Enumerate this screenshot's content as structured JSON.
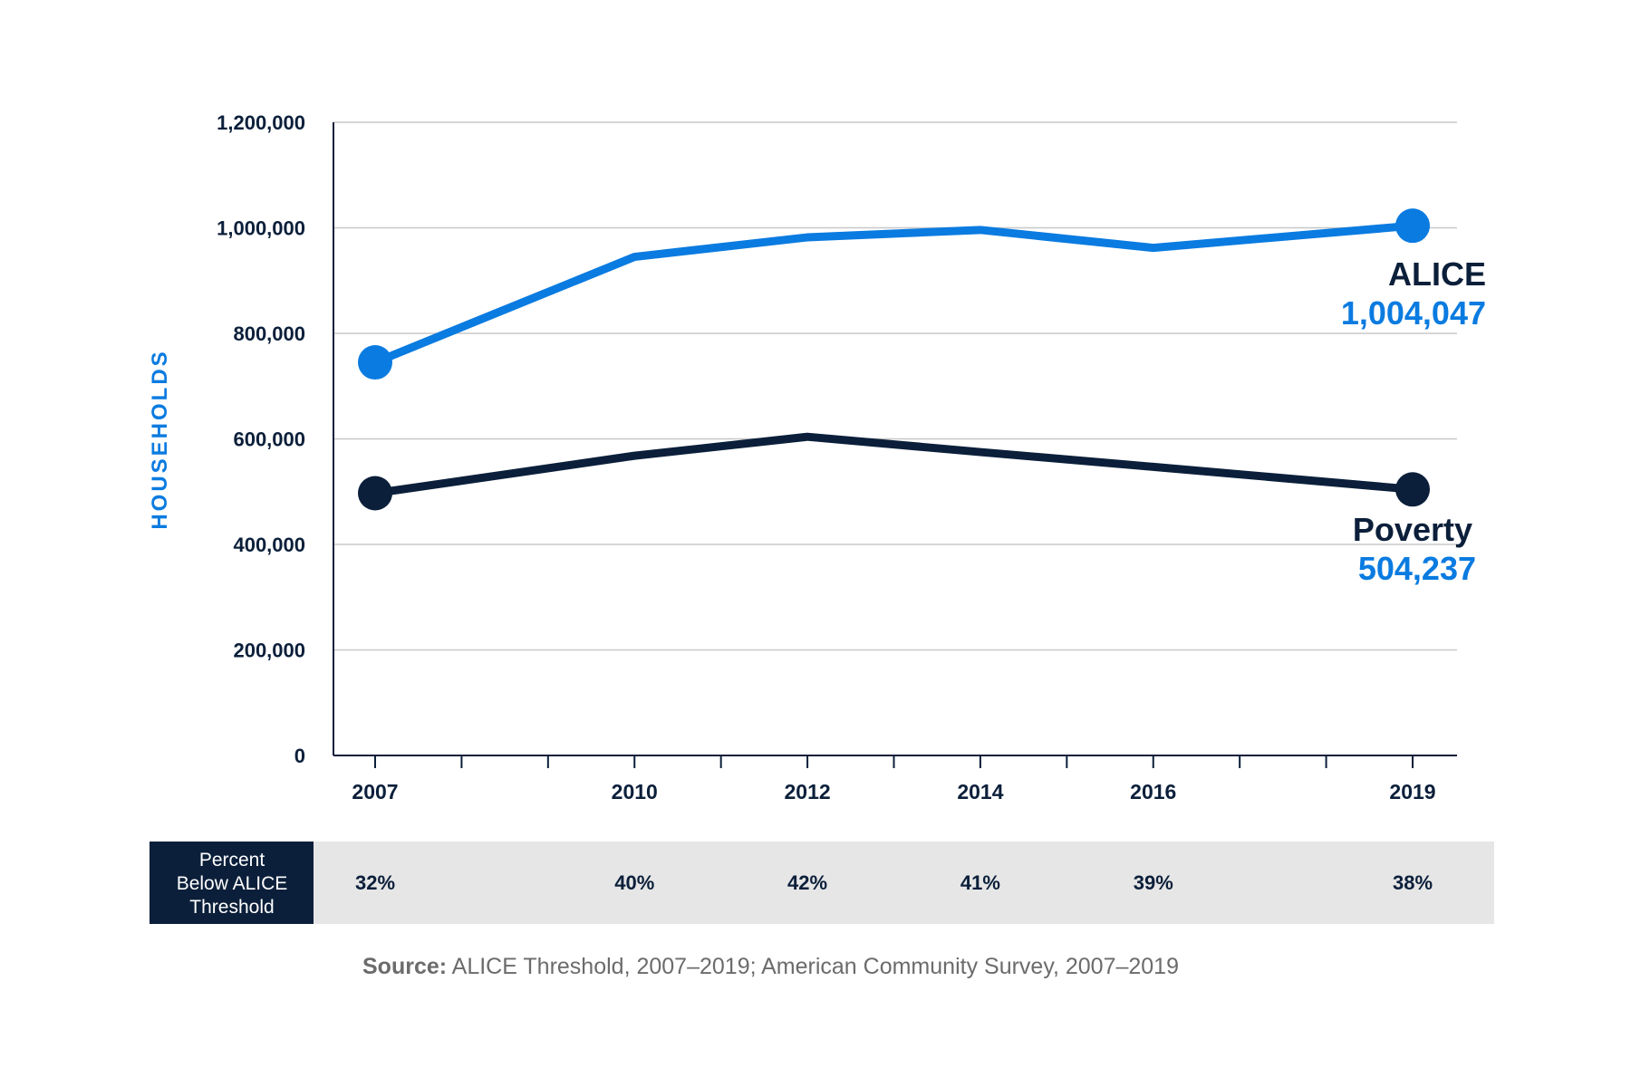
{
  "colors": {
    "alice": "#0a7be0",
    "poverty": "#0b1f3a",
    "grid": "#c8c8c8",
    "axis": "#0b1f3a",
    "band_bg": "#e6e6e6",
    "band_label_bg": "#0b1f3a"
  },
  "chart_data": {
    "type": "line",
    "ylabel": "HOUSEHOLDS",
    "xlabel": "",
    "ylim": [
      0,
      1200000
    ],
    "yticks": [
      0,
      200000,
      400000,
      600000,
      800000,
      1000000,
      1200000
    ],
    "ytick_labels": [
      "0",
      "200,000",
      "400,000",
      "600,000",
      "800,000",
      "1,000,000",
      "1,200,000"
    ],
    "xlim": [
      2007,
      2019
    ],
    "x_tick_years": [
      2007,
      2008,
      2009,
      2010,
      2011,
      2012,
      2013,
      2014,
      2015,
      2016,
      2017,
      2018,
      2019
    ],
    "x_labeled": [
      2007,
      2010,
      2012,
      2014,
      2016,
      2019
    ],
    "x_labels": [
      "2007",
      "2010",
      "2012",
      "2014",
      "2016",
      "2019"
    ],
    "grid": "horizontal",
    "series": [
      {
        "name": "ALICE",
        "end_value_label": "1,004,047",
        "x": [
          2007,
          2010,
          2012,
          2014,
          2016,
          2019
        ],
        "values": [
          745000,
          945000,
          982000,
          996000,
          962000,
          1004047
        ]
      },
      {
        "name": "Poverty",
        "end_value_label": "504,237",
        "x": [
          2007,
          2010,
          2012,
          2014,
          2016,
          2019
        ],
        "values": [
          497000,
          568000,
          604000,
          575000,
          547000,
          504237
        ]
      }
    ],
    "percent_row": {
      "label_lines": [
        "Percent",
        "Below ALICE",
        "Threshold"
      ],
      "x": [
        2007,
        2010,
        2012,
        2014,
        2016,
        2019
      ],
      "values": [
        "32%",
        "40%",
        "42%",
        "41%",
        "39%",
        "38%"
      ]
    }
  },
  "source": {
    "lead": "Source:",
    "text": " ALICE Threshold, 2007–2019; American Community Survey, 2007–2019"
  }
}
